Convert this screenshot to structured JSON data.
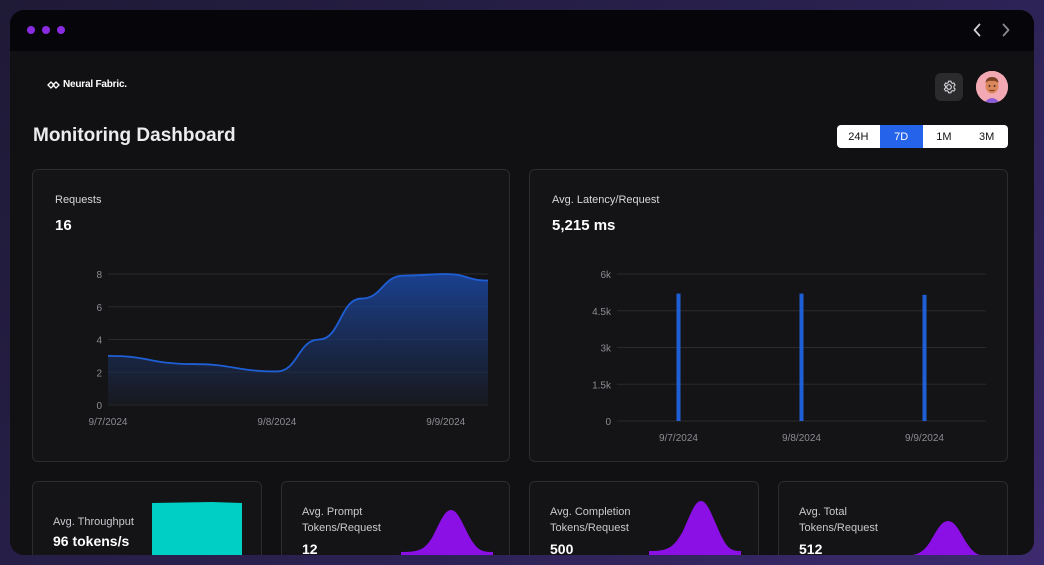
{
  "window": {
    "dots": [
      "#8a2be2",
      "#8a2be2",
      "#8a2be2"
    ]
  },
  "header": {
    "logo_text": "Neural Fabric.",
    "page_title": "Monitoring Dashboard"
  },
  "time_range": {
    "options": [
      "24H",
      "7D",
      "1M",
      "3M"
    ],
    "selected": "7D"
  },
  "cards": {
    "requests": {
      "label": "Requests",
      "value": "16"
    },
    "latency": {
      "label": "Avg. Latency/Request",
      "value": "5,215 ms"
    },
    "throughput": {
      "label": "Avg. Throughput",
      "value": "96 tokens/s"
    },
    "prompt_tokens": {
      "label": "Avg. Prompt Tokens/Request",
      "value": "12"
    },
    "completion_tokens": {
      "label": "Avg. Completion Tokens/Request",
      "value": "500"
    },
    "total_tokens": {
      "label": "Avg. Total Tokens/Request",
      "value": "512"
    }
  },
  "colors": {
    "accent_blue": "#2563eb",
    "series_blue": "#1f5fd6",
    "purple": "#8a10e6",
    "teal": "#00cfc6"
  },
  "chart_data": [
    {
      "type": "area",
      "categories": [
        "9/7/2024",
        "9/8/2024",
        "9/9/2024"
      ],
      "x": [
        0,
        0.5,
        1.0,
        1.25,
        1.5,
        1.75,
        2.0,
        2.25
      ],
      "values": [
        3,
        2.5,
        2.05,
        4,
        6.5,
        7.9,
        8.0,
        7.6
      ],
      "yticks": [
        "8",
        "6",
        "4",
        "2",
        "0"
      ],
      "ylim": [
        0,
        8
      ]
    },
    {
      "type": "bar",
      "categories": [
        "9/7/2024",
        "9/8/2024",
        "9/9/2024"
      ],
      "values": [
        5200,
        5200,
        5150
      ],
      "yticks": [
        "6k",
        "4.5k",
        "3k",
        "1.5k",
        "0"
      ],
      "ylim": [
        0,
        6000
      ]
    }
  ]
}
